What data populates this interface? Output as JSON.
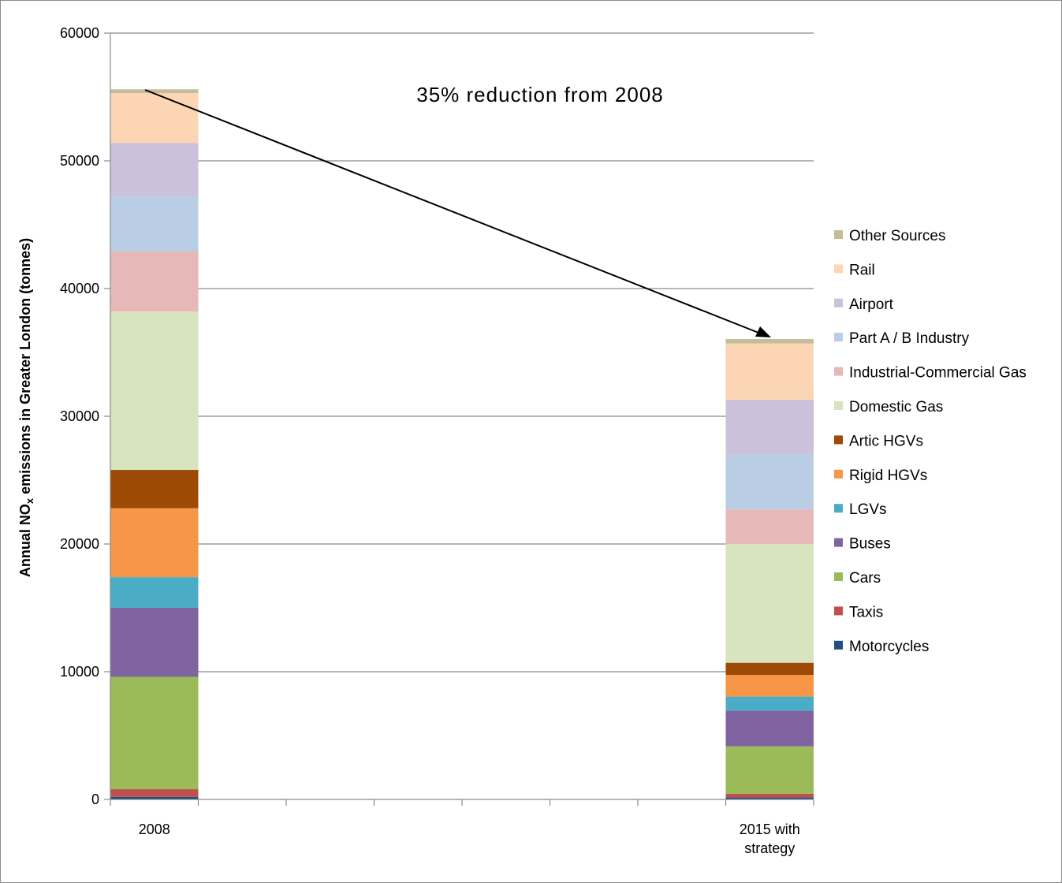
{
  "chart_data": {
    "type": "bar",
    "stacked": true,
    "categories": [
      "2008",
      "2015 with strategy"
    ],
    "ylabel_main": "Annual NO",
    "ylabel_sub": "x",
    "ylabel_rest": " emissions in Greater London (tonnes)",
    "ylim": [
      0,
      60000
    ],
    "yticks": [
      "0",
      "10000",
      "20000",
      "30000",
      "40000",
      "50000",
      "60000"
    ],
    "grid": true,
    "legend_position": "right",
    "annotation": "35% reduction from 2008",
    "series": [
      {
        "name": "Motorcycles",
        "color": "#254E80",
        "values": [
          200,
          150
        ]
      },
      {
        "name": "Taxis",
        "color": "#C0504D",
        "values": [
          600,
          300
        ]
      },
      {
        "name": "Cars",
        "color": "#9BBB59",
        "values": [
          8800,
          3700
        ]
      },
      {
        "name": "Buses",
        "color": "#8064A2",
        "values": [
          5400,
          2800
        ]
      },
      {
        "name": "LGVs",
        "color": "#4BACC6",
        "values": [
          2400,
          1100
        ]
      },
      {
        "name": "Rigid HGVs",
        "color": "#F79646",
        "values": [
          5400,
          1700
        ]
      },
      {
        "name": "Artic HGVs",
        "color": "#9C4A06",
        "values": [
          3000,
          950
        ]
      },
      {
        "name": "Domestic Gas",
        "color": "#D7E4BD",
        "values": [
          12400,
          9300
        ]
      },
      {
        "name": "Industrial-Commercial Gas",
        "color": "#E6B9B8",
        "values": [
          4700,
          2700
        ]
      },
      {
        "name": "Part A / B Industry",
        "color": "#B9CDE5",
        "values": [
          4300,
          4300
        ]
      },
      {
        "name": "Airport",
        "color": "#CCC1DA",
        "values": [
          4200,
          4300
        ]
      },
      {
        "name": "Rail",
        "color": "#FCD5B5",
        "values": [
          3900,
          4400
        ]
      },
      {
        "name": "Other Sources",
        "color": "#C4BD97",
        "values": [
          300,
          350
        ]
      }
    ]
  }
}
